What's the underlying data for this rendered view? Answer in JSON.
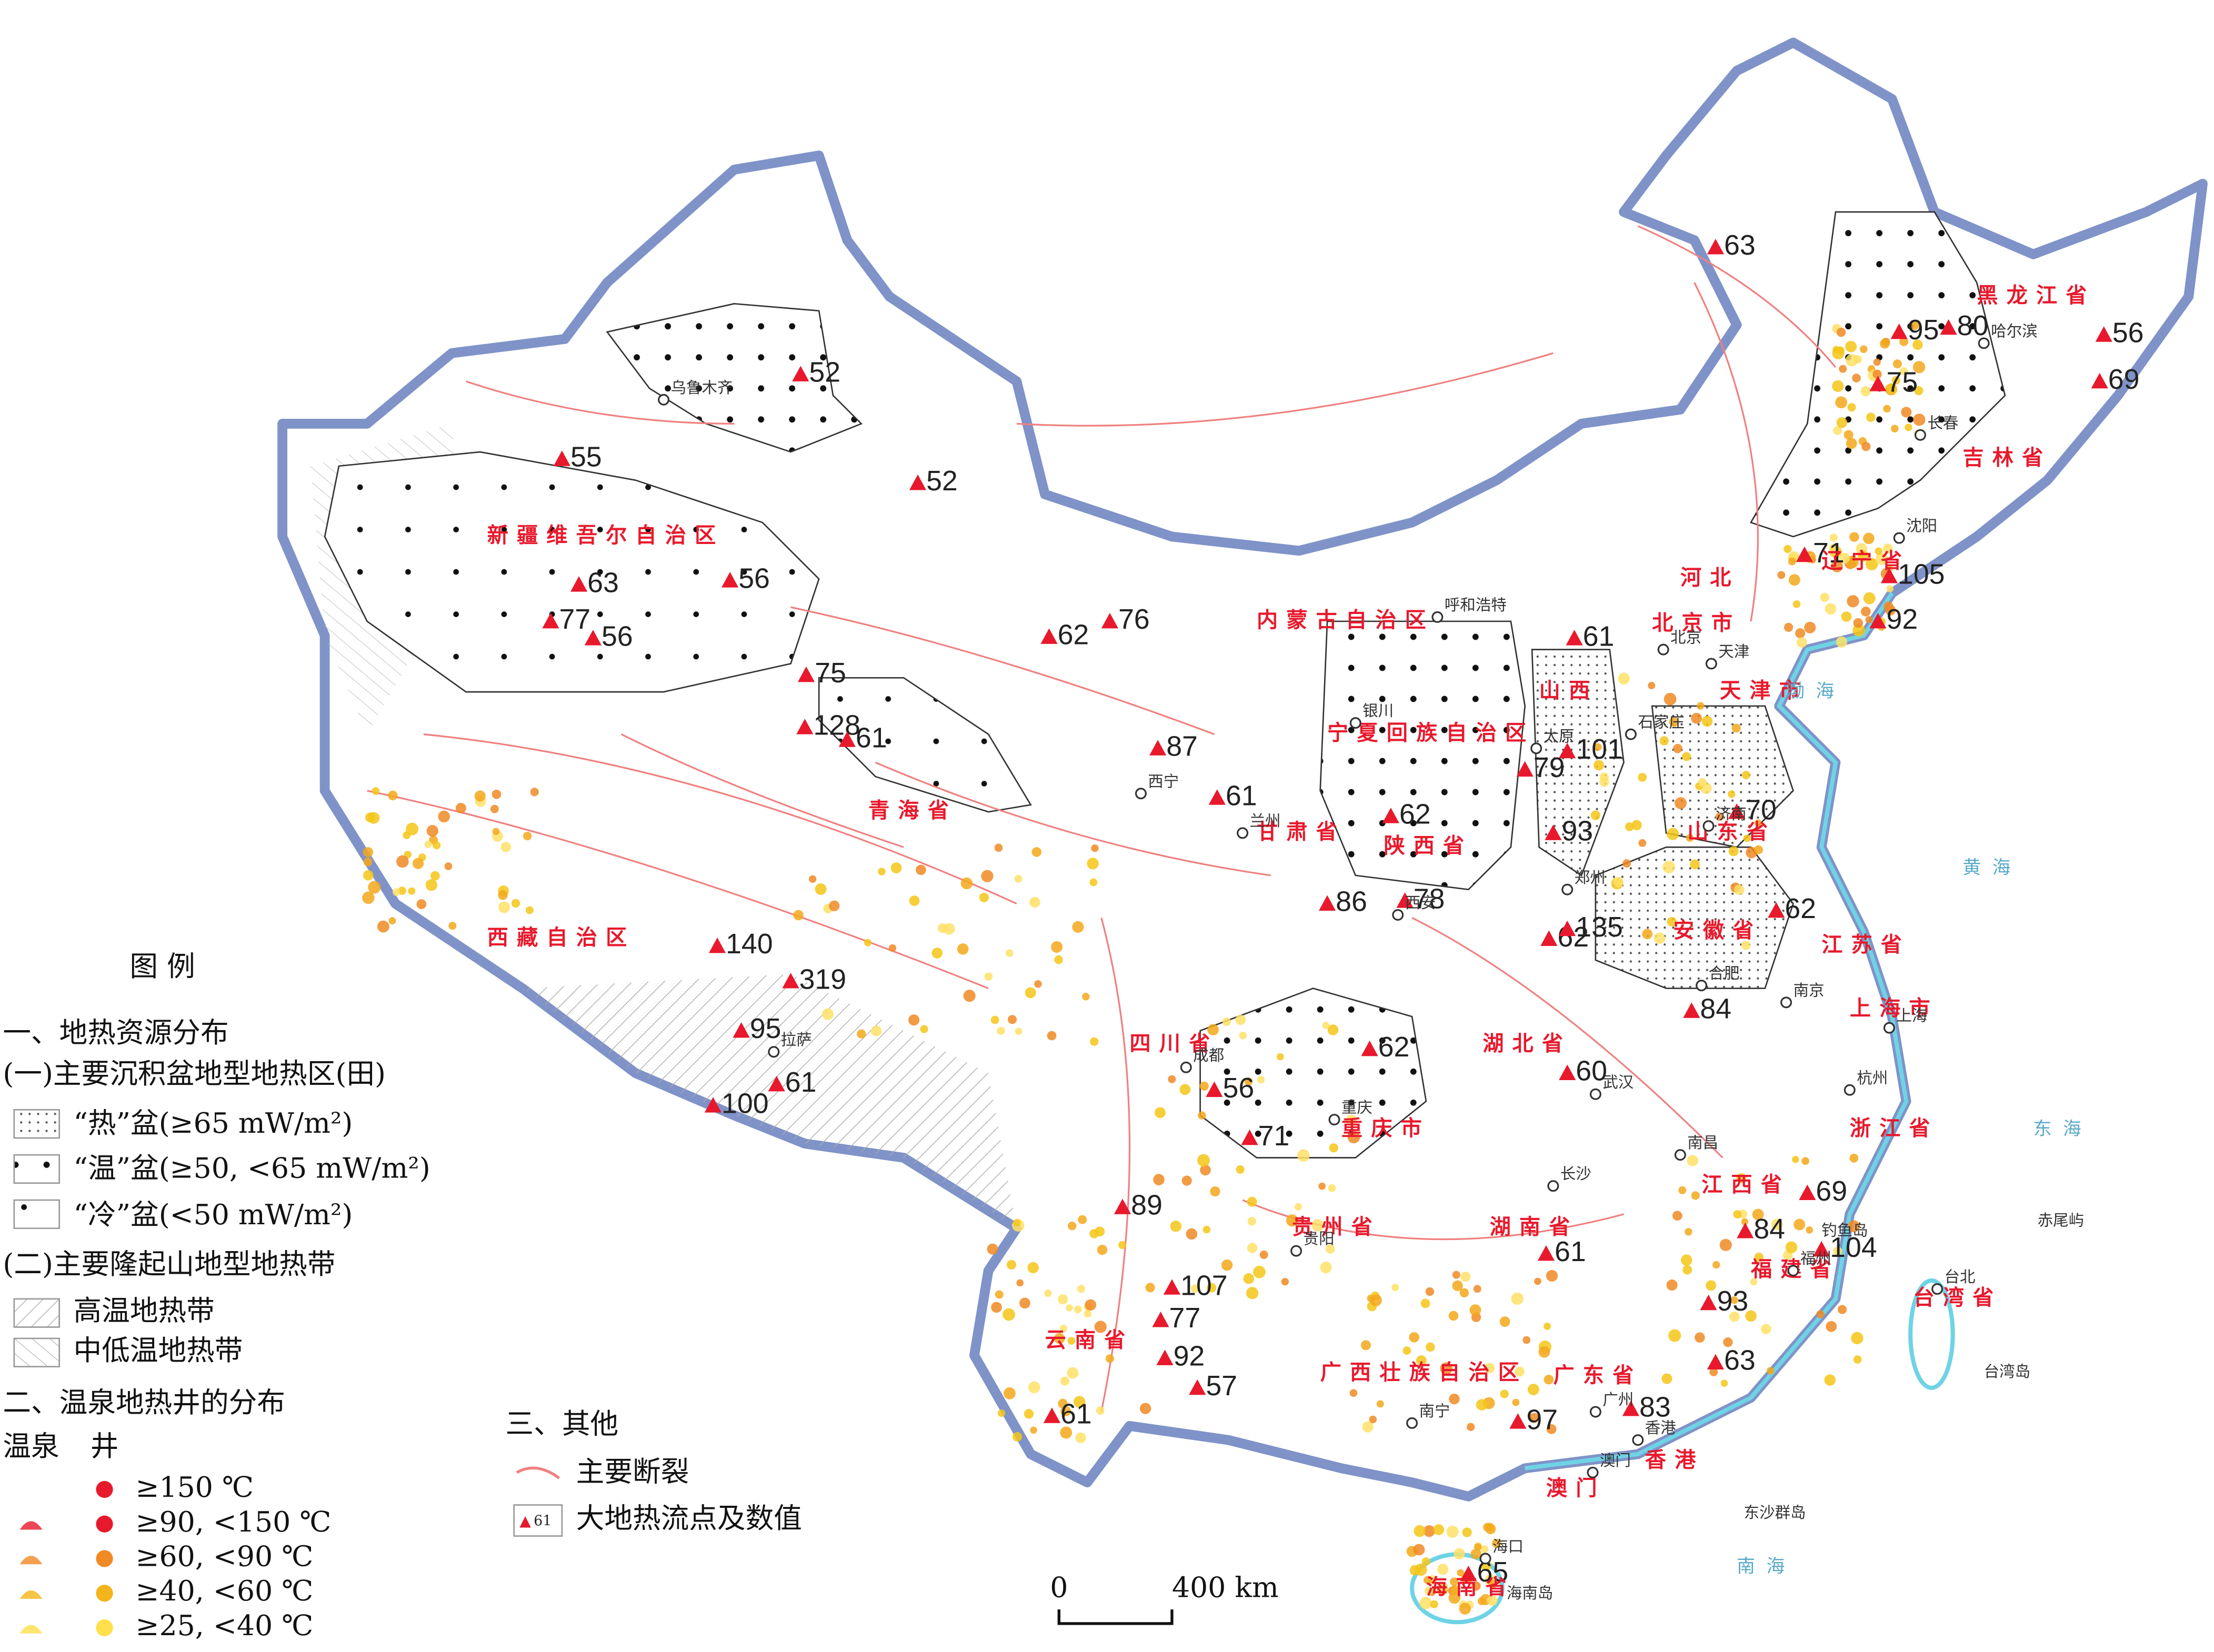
{
  "legend": {
    "title": "图 例",
    "section1": "一、地热资源分布",
    "sub1": "(一)主要沉积盆地型地热区(田)",
    "hot": "“热”盆(≥65 mW/m²)",
    "warm": "“温”盆(≥50, <65 mW/m²)",
    "cold": "“冷”盆(<50 mW/m²)",
    "sub2": "(二)主要隆起山地型地热带",
    "high": "高温地热带",
    "midlow": "中低温地热带",
    "section2": "二、温泉地热井的分布",
    "spring": "温泉",
    "well": "井",
    "temps": [
      "≥150 ℃",
      "≥90, <150 ℃",
      "≥60, <90 ℃",
      "≥40, <60 ℃",
      "≥25, <40 ℃"
    ],
    "section3": "三、其他",
    "fault": "主要断裂",
    "heatflow": "大地热流点及数值",
    "heatflow_sample": 61
  },
  "scale_bar": {
    "start": "0",
    "end": "400 km"
  },
  "heat_flow_values": [
    63,
    52,
    55,
    52,
    56,
    63,
    77,
    56,
    62,
    76,
    75,
    128,
    61,
    87,
    61,
    95,
    80,
    75,
    56,
    69,
    71,
    105,
    92,
    61,
    101,
    79,
    93,
    62,
    70,
    86,
    78,
    62,
    135,
    62,
    84,
    140,
    319,
    95,
    61,
    100,
    62,
    60,
    56,
    71,
    69,
    84,
    104,
    89,
    107,
    77,
    93,
    92,
    61,
    63,
    57,
    83,
    97,
    61,
    65
  ],
  "regions": [
    "新疆维吾尔自治区",
    "西藏自治区",
    "青海省",
    "内蒙古自治区",
    "黑龙江省",
    "吉林省",
    "辽宁省",
    "河北",
    "山东省",
    "山西",
    "陕西省",
    "宁夏回族自治区",
    "甘肃省",
    "四川省",
    "重庆市",
    "湖北省",
    "安徽省",
    "江苏省",
    "浙江省",
    "江西省",
    "湖南省",
    "贵州省",
    "云南省",
    "广西壮族自治区",
    "广东省",
    "福建省",
    "台湾省",
    "海南省",
    "上海市",
    "北京市",
    "天津市",
    "香港",
    "澳门"
  ],
  "cities": [
    "乌鲁木齐",
    "拉萨",
    "西宁",
    "兰州",
    "银川",
    "呼和浩特",
    "太原",
    "北京",
    "天津",
    "石家庄",
    "济南",
    "郑州",
    "西安",
    "成都",
    "重庆",
    "武汉",
    "长沙",
    "南昌",
    "合肥",
    "南京",
    "上海",
    "杭州",
    "福州",
    "贵阳",
    "南宁",
    "广州",
    "香港",
    "澳门",
    "海口",
    "台北",
    "哈尔滨",
    "长春",
    "沈阳",
    "台湾岛",
    "海南岛",
    "钓鱼岛",
    "赤尾屿",
    "东沙群岛"
  ],
  "seas": [
    "黄海",
    "东海",
    "南海",
    "渤海"
  ]
}
